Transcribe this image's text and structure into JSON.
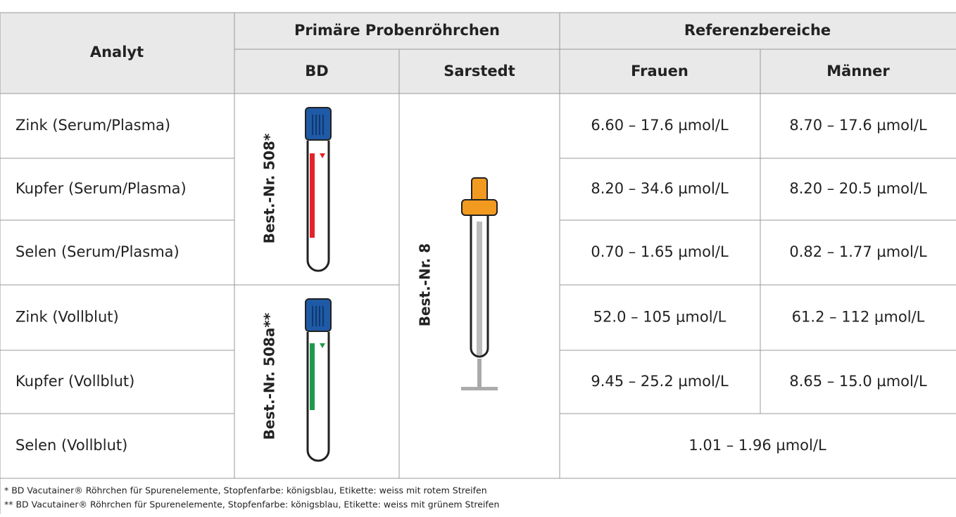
{
  "header": {
    "analyte": "Analyt",
    "primary_tubes": "Primäre Probenröhrchen",
    "reference_ranges": "Referenzbereiche",
    "bd": "BD",
    "sarstedt": "Sarstedt",
    "women": "Frauen",
    "men": "Männer"
  },
  "table": {
    "rows": [
      [
        "Zink (Serum/Plasma)",
        "6.60 – 17.6 µmol/L",
        "8.70 – 17.6 µmol/L"
      ],
      [
        "Kupfer (Serum/Plasma)",
        "8.20 – 34.6 µmol/L",
        "8.20 – 20.5 µmol/L"
      ],
      [
        "Selen (Serum/Plasma)",
        "0.70 – 1.65 µmol/L",
        "0.82 – 1.77 µmol/L"
      ],
      [
        "Zink (Vollblut)",
        "52.0 – 105 µmol/L",
        "61.2 – 112 µmol/L"
      ],
      [
        "Kupfer (Vollblut)",
        "9.45 – 25.2 µmol/L",
        "8.65 – 15.0 µmol/L"
      ],
      [
        "Selen (Vollblut)",
        "1.01 – 1.96 µmol/L"
      ]
    ]
  },
  "tubes": {
    "bd_red": "Best.-Nr. 508*",
    "bd_green": "Best.-Nr. 508a**",
    "sarstedt": "Best.-Nr. 8"
  },
  "footnotes": [
    "* BD Vacutainer® Röhrchen für Spurenelemente, Stopfenfarbe: königsblau, Etikette: weiss mit rotem Streifen",
    "** BD Vacutainer® Röhrchen für Spurenelemente, Stopfenfarbe: königsblau, Etikette: weiss mit grünem Streifen"
  ]
}
